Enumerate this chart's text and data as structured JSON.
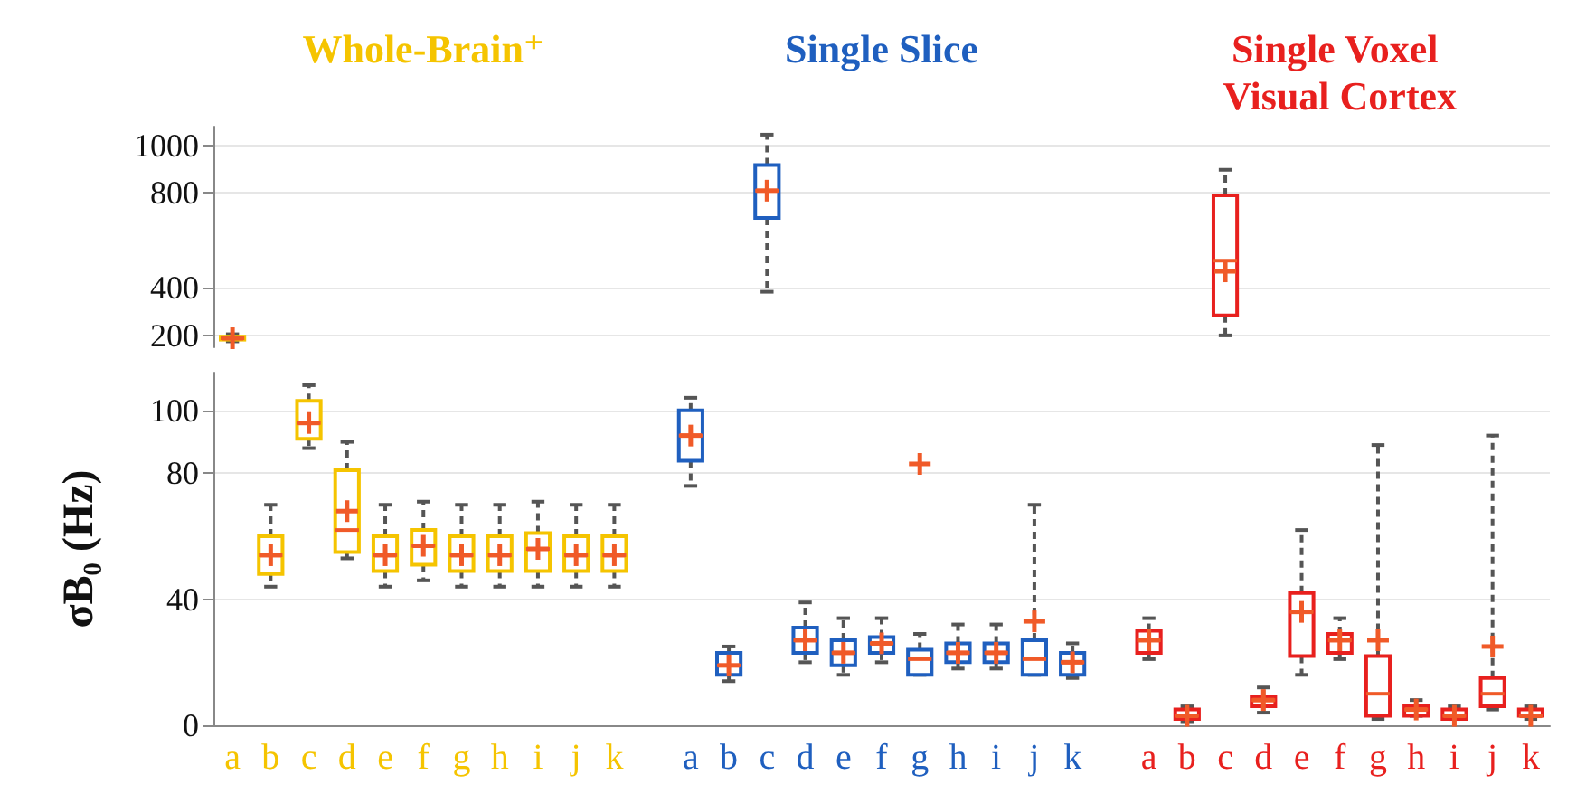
{
  "chart_data": [
    {
      "type": "box",
      "categories": [
        "a",
        "b",
        "c",
        "d",
        "e",
        "f",
        "g",
        "h",
        "i",
        "j",
        "k",
        null,
        "a",
        "b",
        "c",
        "d",
        "e",
        "f",
        "g",
        "h",
        "i",
        "j",
        "k",
        null,
        "a",
        "b",
        "c",
        "d",
        "e",
        "f",
        "g",
        "h",
        "i",
        "j",
        "k"
      ],
      "tick_labels": "y",
      "grid": "y",
      "ylim": [
        150,
        1080
      ],
      "yticks": [
        200,
        400,
        800,
        1000
      ],
      "series": [
        {
          "name": "Whole-Brain⁺",
          "color": "#f5c400",
          "boxes": [
            {
              "low": 175,
              "q1": 182,
              "median": 188,
              "q3": 195,
              "high": 205,
              "mean": 188
            },
            null,
            null,
            null,
            null,
            null,
            null,
            null,
            null,
            null,
            null,
            null,
            null,
            null,
            null,
            null,
            null,
            null,
            null,
            null,
            null,
            null,
            null,
            null,
            null,
            null,
            null,
            null,
            null,
            null,
            null,
            null,
            null,
            null,
            null
          ]
        },
        {
          "name": "Single Slice",
          "color": "#1f5fbf",
          "boxes": [
            null,
            null,
            null,
            null,
            null,
            null,
            null,
            null,
            null,
            null,
            null,
            null,
            null,
            null,
            {
              "low": 384,
              "q1": 695,
              "median": 810,
              "q3": 918,
              "high": 1046,
              "mean": 810
            },
            null,
            null,
            null,
            null,
            null,
            null,
            null,
            null,
            null,
            null,
            null,
            null,
            null,
            null,
            null,
            null,
            null,
            null,
            null,
            null
          ]
        },
        {
          "name": "Single Voxel Visual Cortex",
          "color": "#e8201e",
          "boxes": [
            null,
            null,
            null,
            null,
            null,
            null,
            null,
            null,
            null,
            null,
            null,
            null,
            null,
            null,
            null,
            null,
            null,
            null,
            null,
            null,
            null,
            null,
            null,
            null,
            null,
            null,
            {
              "low": 200,
              "q1": 284,
              "median": 515,
              "q3": 790,
              "high": 898,
              "mean": 470
            },
            null,
            null,
            null,
            null,
            null,
            null,
            null,
            null
          ]
        }
      ]
    },
    {
      "type": "box",
      "categories": [
        "a",
        "b",
        "c",
        "d",
        "e",
        "f",
        "g",
        "h",
        "i",
        "j",
        "k",
        null,
        "a",
        "b",
        "c",
        "d",
        "e",
        "f",
        "g",
        "h",
        "i",
        "j",
        "k",
        null,
        "a",
        "b",
        "c",
        "d",
        "e",
        "f",
        "g",
        "h",
        "i",
        "j",
        "k"
      ],
      "ylabel": "σB₀ (Hz)",
      "grid": "y",
      "ylim": [
        0,
        112
      ],
      "yticks": [
        0,
        40,
        80,
        100
      ],
      "series": [
        {
          "color": "#f5c400",
          "boxes": [
            null,
            {
              "low": 44,
              "q1": 48,
              "median": 54,
              "q3": 60,
              "high": 70,
              "mean": 54
            },
            {
              "low": 88,
              "q1": 91,
              "median": 96,
              "q3": 103,
              "high": 108,
              "mean": 96
            },
            {
              "low": 53,
              "q1": 55,
              "median": 62,
              "q3": 81,
              "high": 90,
              "mean": 68
            },
            {
              "low": 44,
              "q1": 49,
              "median": 54,
              "q3": 60,
              "high": 70,
              "mean": 54
            },
            {
              "low": 46,
              "q1": 51,
              "median": 57,
              "q3": 62,
              "high": 71,
              "mean": 57
            },
            {
              "low": 44,
              "q1": 49,
              "median": 54,
              "q3": 60,
              "high": 70,
              "mean": 54
            },
            {
              "low": 44,
              "q1": 49,
              "median": 54,
              "q3": 60,
              "high": 70,
              "mean": 54
            },
            {
              "low": 44,
              "q1": 49,
              "median": 56,
              "q3": 61,
              "high": 71,
              "mean": 56
            },
            {
              "low": 44,
              "q1": 49,
              "median": 54,
              "q3": 60,
              "high": 70,
              "mean": 54
            },
            {
              "low": 44,
              "q1": 49,
              "median": 54,
              "q3": 60,
              "high": 70,
              "mean": 54
            },
            null,
            null,
            null,
            null,
            null,
            null,
            null,
            null,
            null,
            null,
            null,
            null,
            null,
            null,
            null,
            null,
            null,
            null,
            null,
            null,
            null,
            null,
            null,
            null
          ]
        },
        {
          "color": "#1f5fbf",
          "boxes": [
            null,
            null,
            null,
            null,
            null,
            null,
            null,
            null,
            null,
            null,
            null,
            null,
            {
              "low": 76,
              "q1": 84,
              "median": 92,
              "q3": 100,
              "high": 104,
              "mean": 92
            },
            {
              "low": 14,
              "q1": 16,
              "median": 19,
              "q3": 23,
              "high": 25,
              "mean": 19
            },
            null,
            {
              "low": 20,
              "q1": 23,
              "median": 27,
              "q3": 31,
              "high": 39,
              "mean": 27
            },
            {
              "low": 16,
              "q1": 19,
              "median": 23,
              "q3": 27,
              "high": 34,
              "mean": 23
            },
            {
              "low": 20,
              "q1": 23,
              "median": 26,
              "q3": 28,
              "high": 34,
              "mean": 26
            },
            {
              "low": 16,
              "q1": 16,
              "median": 21,
              "q3": 24,
              "high": 29,
              "mean": 83
            },
            {
              "low": 18,
              "q1": 20,
              "median": 23,
              "q3": 26,
              "high": 32,
              "mean": 23
            },
            {
              "low": 18,
              "q1": 20,
              "median": 23,
              "q3": 26,
              "high": 32,
              "mean": 23
            },
            {
              "low": 16,
              "q1": 16,
              "median": 21,
              "q3": 27,
              "high": 70,
              "mean": 33
            },
            {
              "low": 15,
              "q1": 16,
              "median": 20,
              "q3": 23,
              "high": 26,
              "mean": 20
            },
            null,
            null,
            null,
            null,
            null,
            null,
            null,
            null,
            null,
            null,
            null,
            null
          ]
        },
        {
          "color": "#e8201e",
          "boxes": [
            null,
            null,
            null,
            null,
            null,
            null,
            null,
            null,
            null,
            null,
            null,
            null,
            null,
            null,
            null,
            null,
            null,
            null,
            null,
            null,
            null,
            null,
            null,
            null,
            {
              "low": 21,
              "q1": 23,
              "median": 27,
              "q3": 30,
              "high": 34,
              "mean": 27
            },
            {
              "low": 1,
              "q1": 2,
              "median": 3,
              "q3": 5,
              "high": 6,
              "mean": 3
            },
            null,
            {
              "low": 4,
              "q1": 6,
              "median": 8,
              "q3": 9,
              "high": 12,
              "mean": 8
            },
            {
              "low": 16,
              "q1": 22,
              "median": 36,
              "q3": 42,
              "high": 62,
              "mean": 36
            },
            {
              "low": 21,
              "q1": 23,
              "median": 27,
              "q3": 29,
              "high": 34,
              "mean": 27
            },
            {
              "low": 2,
              "q1": 3,
              "median": 10,
              "q3": 22,
              "high": 89,
              "mean": 27
            },
            {
              "low": 3,
              "q1": 3,
              "median": 5,
              "q3": 6,
              "high": 8,
              "mean": 5
            },
            {
              "low": 2,
              "q1": 2,
              "median": 3,
              "q3": 5,
              "high": 6,
              "mean": 3
            },
            {
              "low": 5,
              "q1": 6,
              "median": 10,
              "q3": 15,
              "high": 92,
              "mean": 25
            },
            {
              "low": 2,
              "q1": 3,
              "median": 3,
              "q3": 5,
              "high": 6,
              "mean": 3
            }
          ]
        }
      ]
    }
  ]
}
